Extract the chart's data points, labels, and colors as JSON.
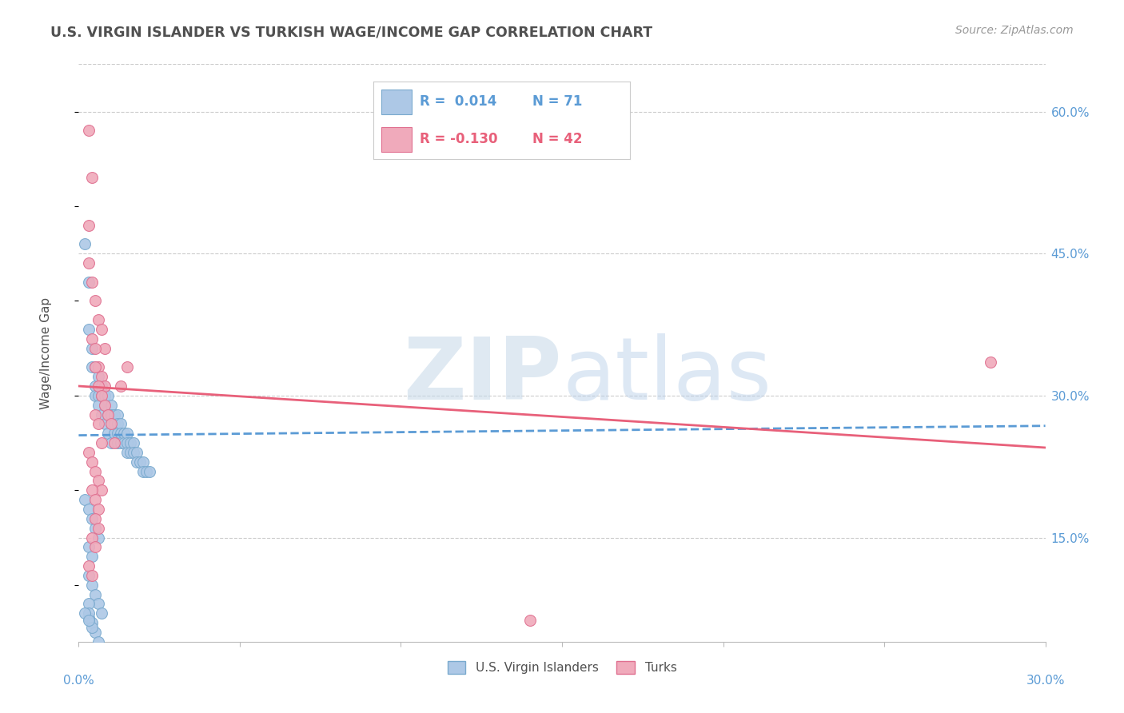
{
  "title": "U.S. VIRGIN ISLANDER VS TURKISH WAGE/INCOME GAP CORRELATION CHART",
  "source": "Source: ZipAtlas.com",
  "ylabel": "Wage/Income Gap",
  "series1_label": "U.S. Virgin Islanders",
  "series2_label": "Turks",
  "series1_color": "#adc8e6",
  "series2_color": "#f0aabb",
  "series1_edge": "#7aaace",
  "series2_edge": "#e07090",
  "trend1_color": "#5b9bd5",
  "trend2_color": "#e8607a",
  "watermark_zip": "ZIP",
  "watermark_atlas": "atlas",
  "watermark_color_zip": "#c0d0e0",
  "watermark_color_atlas": "#b0c8e8",
  "background_color": "#ffffff",
  "grid_color": "#cccccc",
  "title_color": "#505050",
  "axis_label_color": "#5b9bd5",
  "xmin": 0.0,
  "xmax": 0.3,
  "ymin": 0.04,
  "ymax": 0.65,
  "ytick_vals": [
    0.15,
    0.3,
    0.45,
    0.6
  ],
  "ytick_labels": [
    "15.0%",
    "30.0%",
    "45.0%",
    "60.0%"
  ],
  "xtick_vals": [
    0.0,
    0.05,
    0.1,
    0.15,
    0.2,
    0.25,
    0.3
  ],
  "legend_r1": "R =  0.014",
  "legend_n1": "N = 71",
  "legend_r2": "R = -0.130",
  "legend_n2": "N = 42",
  "trend1_x0": 0.0,
  "trend1_x1": 0.3,
  "trend1_y0": 0.258,
  "trend1_y1": 0.268,
  "trend2_x0": 0.0,
  "trend2_x1": 0.3,
  "trend2_y0": 0.31,
  "trend2_y1": 0.245,
  "blue_x": [
    0.002,
    0.003,
    0.003,
    0.004,
    0.004,
    0.005,
    0.005,
    0.005,
    0.006,
    0.006,
    0.006,
    0.007,
    0.007,
    0.007,
    0.008,
    0.008,
    0.008,
    0.009,
    0.009,
    0.009,
    0.01,
    0.01,
    0.01,
    0.01,
    0.011,
    0.011,
    0.011,
    0.012,
    0.012,
    0.012,
    0.012,
    0.013,
    0.013,
    0.013,
    0.014,
    0.014,
    0.015,
    0.015,
    0.015,
    0.016,
    0.016,
    0.017,
    0.017,
    0.018,
    0.018,
    0.019,
    0.02,
    0.02,
    0.021,
    0.022,
    0.002,
    0.003,
    0.004,
    0.005,
    0.006,
    0.003,
    0.004,
    0.005,
    0.006,
    0.007,
    0.004,
    0.005,
    0.006,
    0.003,
    0.004,
    0.003,
    0.003,
    0.004,
    0.003,
    0.002,
    0.003
  ],
  "blue_y": [
    0.46,
    0.42,
    0.37,
    0.35,
    0.33,
    0.33,
    0.31,
    0.3,
    0.32,
    0.3,
    0.29,
    0.31,
    0.3,
    0.28,
    0.3,
    0.29,
    0.27,
    0.3,
    0.28,
    0.26,
    0.29,
    0.28,
    0.27,
    0.25,
    0.28,
    0.27,
    0.26,
    0.28,
    0.27,
    0.26,
    0.25,
    0.27,
    0.26,
    0.25,
    0.26,
    0.25,
    0.26,
    0.25,
    0.24,
    0.25,
    0.24,
    0.25,
    0.24,
    0.24,
    0.23,
    0.23,
    0.23,
    0.22,
    0.22,
    0.22,
    0.19,
    0.18,
    0.17,
    0.16,
    0.15,
    0.11,
    0.1,
    0.09,
    0.08,
    0.07,
    0.06,
    0.05,
    0.04,
    0.14,
    0.13,
    0.08,
    0.065,
    0.055,
    0.07,
    0.07,
    0.063
  ],
  "pink_x": [
    0.003,
    0.004,
    0.005,
    0.006,
    0.007,
    0.008,
    0.004,
    0.005,
    0.006,
    0.007,
    0.008,
    0.005,
    0.006,
    0.007,
    0.008,
    0.009,
    0.005,
    0.006,
    0.007,
    0.003,
    0.004,
    0.005,
    0.006,
    0.007,
    0.004,
    0.005,
    0.006,
    0.005,
    0.006,
    0.004,
    0.005,
    0.003,
    0.004,
    0.01,
    0.011,
    0.013,
    0.015,
    0.003,
    0.004,
    0.003,
    0.14,
    0.283
  ],
  "pink_y": [
    0.44,
    0.42,
    0.4,
    0.38,
    0.37,
    0.35,
    0.36,
    0.35,
    0.33,
    0.32,
    0.31,
    0.33,
    0.31,
    0.3,
    0.29,
    0.28,
    0.28,
    0.27,
    0.25,
    0.24,
    0.23,
    0.22,
    0.21,
    0.2,
    0.2,
    0.19,
    0.18,
    0.17,
    0.16,
    0.15,
    0.14,
    0.12,
    0.11,
    0.27,
    0.25,
    0.31,
    0.33,
    0.58,
    0.53,
    0.48,
    0.063,
    0.335
  ]
}
